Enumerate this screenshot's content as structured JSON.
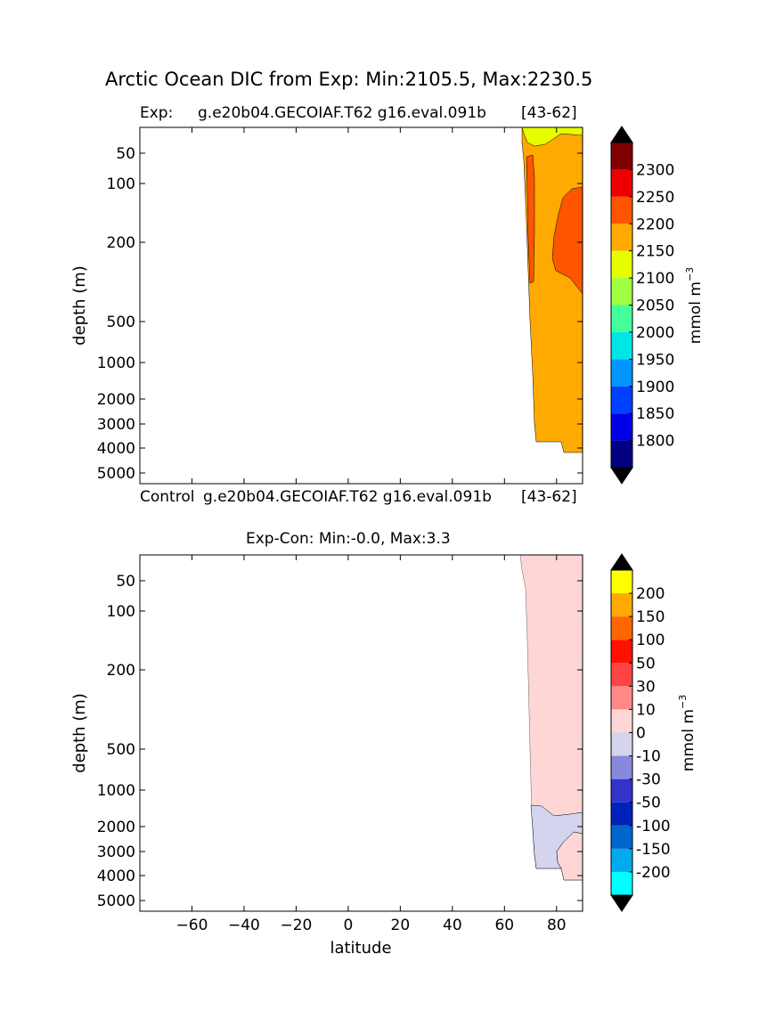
{
  "figure_title": "Arctic Ocean DIC from Exp: Min:2105.5, Max:2230.5",
  "top_panel": {
    "left_label": "Exp:",
    "case_label": "g.e20b04.GECOIAF.T62 g16.eval.091b",
    "range_label": "[43-62]"
  },
  "bottom_panel": {
    "left_label": "Control",
    "case_label": "g.e20b04.GECOIAF.T62 g16.eval.091b",
    "range_label": "[43-62]",
    "title": "Exp-Con: Min:-0.0, Max:3.3"
  },
  "chart_data": [
    {
      "type": "heatmap",
      "name": "top",
      "ylabel": "depth (m)",
      "xlim": [
        -80,
        90
      ],
      "yticks": [
        "50",
        "100",
        "200",
        "500",
        "1000",
        "2000",
        "3000",
        "4000",
        "5000"
      ],
      "colorbar": {
        "label": "mmol m",
        "label_sup": "−3",
        "tick_labels": [
          "2300",
          "2250",
          "2200",
          "2150",
          "2100",
          "2050",
          "2000",
          "1950",
          "1900",
          "1850",
          "1800"
        ],
        "colors": [
          "#000080",
          "#0000e6",
          "#0040ff",
          "#0096ff",
          "#00e6e6",
          "#44ff99",
          "#a0ff40",
          "#e6ff00",
          "#ffaa00",
          "#ff5500",
          "#ee0000",
          "#800000"
        ],
        "extend_colors": {
          "below": "#000000",
          "above": "#000000"
        }
      },
      "regions": [
        {
          "level": "2150-2200",
          "color": "#ffaa00"
        },
        {
          "level": "2200-2250",
          "color": "#ff5500"
        },
        {
          "level": "2100-2150",
          "color": "#e6ff00"
        }
      ]
    },
    {
      "type": "heatmap",
      "name": "bottom",
      "ylabel": "depth (m)",
      "xlabel": "latitude",
      "xticks": [
        "−60",
        "−40",
        "−20",
        "0",
        "20",
        "40",
        "60",
        "80"
      ],
      "xlim": [
        -80,
        90
      ],
      "yticks": [
        "50",
        "100",
        "200",
        "500",
        "1000",
        "2000",
        "3000",
        "4000",
        "5000"
      ],
      "colorbar": {
        "label": "mmol m",
        "label_sup": "−3",
        "tick_labels": [
          "200",
          "150",
          "100",
          "50",
          "30",
          "10",
          "0",
          "-10",
          "-30",
          "-50",
          "-100",
          "-150",
          "-200"
        ],
        "colors": [
          "#00ffff",
          "#00aaee",
          "#0066cc",
          "#0022bb",
          "#3333cc",
          "#8888dd",
          "#d4d4ee",
          "#ffd6d6",
          "#ff8888",
          "#ff4444",
          "#ff1100",
          "#ff6600",
          "#ffaa00",
          "#ffff00"
        ],
        "extend_colors": {
          "below": "#000000",
          "above": "#000000"
        }
      },
      "regions": [
        {
          "level": "0-10",
          "color": "#ffd6d6"
        },
        {
          "level": "-10-0",
          "color": "#d4d4ee"
        }
      ]
    }
  ]
}
